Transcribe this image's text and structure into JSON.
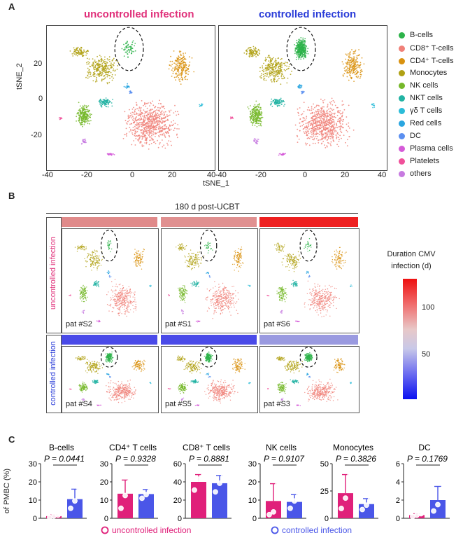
{
  "panels": {
    "a": "A",
    "b": "B",
    "c": "C"
  },
  "panelA": {
    "left_title": "uncontrolled infection",
    "right_title": "controlled infection",
    "x_axis_label": "tSNE_1",
    "y_axis_label": "tSNE_2",
    "x_ticks": [
      "-40",
      "-20",
      "0",
      "20",
      "40"
    ],
    "y_ticks": [
      "20",
      "0",
      "-20"
    ],
    "legend": [
      {
        "label": "B-cells",
        "color": "#2db34a"
      },
      {
        "label": "CD8⁺ T-cells",
        "color": "#f08078"
      },
      {
        "label": "CD4⁺ T-cells",
        "color": "#d9920f"
      },
      {
        "label": "Monocytes",
        "color": "#b0a114"
      },
      {
        "label": "NK cells",
        "color": "#76b82a"
      },
      {
        "label": "NKT cells",
        "color": "#22b3a3"
      },
      {
        "label": "γδ T cells",
        "color": "#2bbcd8"
      },
      {
        "label": "Red cells",
        "color": "#2aa6e0"
      },
      {
        "label": "DC",
        "color": "#5b8ff0"
      },
      {
        "label": "Plasma cells",
        "color": "#d55bd8"
      },
      {
        "label": "Platelets",
        "color": "#f0509a"
      },
      {
        "label": "others",
        "color": "#c77ae0"
      }
    ]
  },
  "panelB": {
    "timepoint": "180 d post-UCBT",
    "row_labels": [
      "uncontrolled infection",
      "controlled infection"
    ],
    "uncontrolled_row_label_color": "#e0307a",
    "controlled_row_label_color": "#2a3cd8",
    "patients_top": [
      {
        "label": "pat #S2",
        "bar_color": "#e08a8a"
      },
      {
        "label": "pat #S1",
        "bar_color": "#e09090"
      },
      {
        "label": "pat #S6",
        "bar_color": "#ee2020"
      }
    ],
    "patients_bottom": [
      {
        "label": "pat #S4",
        "bar_color": "#4a4ae8"
      },
      {
        "label": "pat #S5",
        "bar_color": "#4a4ae8"
      },
      {
        "label": "pat #S3",
        "bar_color": "#9a9ae0"
      }
    ],
    "colorbar_title": "Duration CMV infection (d)",
    "colorbar_ticks": [
      "100",
      "50"
    ]
  },
  "chart_data": [
    {
      "type": "bar",
      "title": "B-cells",
      "ylabel": "of PMBC (%)",
      "categories": [
        "uncontrolled infection",
        "controlled infection"
      ],
      "values": [
        1.2,
        10.5
      ],
      "errors": [
        0.6,
        5.5
      ],
      "points": [
        [
          0.5,
          1.3,
          1.8
        ],
        [
          5.5,
          9.5,
          16.5
        ]
      ],
      "ylim": [
        0,
        30
      ],
      "yticks": [
        "0",
        "10",
        "20",
        "30"
      ],
      "pvalue": "P = 0.0441"
    },
    {
      "type": "bar",
      "title": "CD4⁺ T cells",
      "ylabel": "",
      "categories": [
        "uncontrolled infection",
        "controlled infection"
      ],
      "values": [
        13.5,
        13.3
      ],
      "errors": [
        7.5,
        2.5
      ],
      "points": [
        [
          5.5,
          12.5,
          20.0
        ],
        [
          11.0,
          13.0,
          15.5
        ]
      ],
      "ylim": [
        0,
        30
      ],
      "yticks": [
        "0",
        "10",
        "20",
        "30"
      ],
      "pvalue": "P = 0.9328"
    },
    {
      "type": "bar",
      "title": "CD8⁺ T cells",
      "ylabel": "",
      "categories": [
        "uncontrolled infection",
        "controlled infection"
      ],
      "values": [
        40.0,
        38.5
      ],
      "errors": [
        8.0,
        8.5
      ],
      "points": [
        [
          31.0,
          43.0,
          46.0
        ],
        [
          29.0,
          38.5,
          47.0
        ]
      ],
      "ylim": [
        0,
        60
      ],
      "yticks": [
        "0",
        "20",
        "40",
        "60"
      ],
      "pvalue": "P = 0.8881"
    },
    {
      "type": "bar",
      "title": "NK cells",
      "ylabel": "",
      "categories": [
        "uncontrolled infection",
        "controlled infection"
      ],
      "values": [
        9.5,
        9.0
      ],
      "errors": [
        9.5,
        4.0
      ],
      "points": [
        [
          2.0,
          3.5,
          18.5
        ],
        [
          5.5,
          9.5,
          12.5
        ]
      ],
      "ylim": [
        0,
        30
      ],
      "yticks": [
        "0",
        "10",
        "20",
        "30"
      ],
      "pvalue": "P = 0.9107"
    },
    {
      "type": "bar",
      "title": "Monocytes",
      "ylabel": "",
      "categories": [
        "uncontrolled infection",
        "controlled infection"
      ],
      "values": [
        23.0,
        13.0
      ],
      "errors": [
        17.0,
        5.0
      ],
      "points": [
        [
          9.0,
          18.5,
          39.0
        ],
        [
          8.0,
          12.0,
          18.0
        ]
      ],
      "ylim": [
        0,
        50
      ],
      "yticks": [
        "0",
        "25",
        "50"
      ],
      "pvalue": "P = 0.3826"
    },
    {
      "type": "bar",
      "title": "DC",
      "ylabel": "",
      "categories": [
        "uncontrolled infection",
        "controlled infection"
      ],
      "values": [
        0.35,
        2.0
      ],
      "errors": [
        0.15,
        1.5
      ],
      "points": [
        [
          0.2,
          0.35,
          0.5
        ],
        [
          0.8,
          1.5,
          3.2
        ]
      ],
      "ylim": [
        0,
        6
      ],
      "yticks": [
        "0",
        "2",
        "4",
        "6"
      ],
      "pvalue": "P = 0.1769"
    }
  ],
  "panelC": {
    "legend": [
      {
        "label": "uncontrolled infection",
        "color": "#e0207a"
      },
      {
        "label": "controlled infection",
        "color": "#4a56e8"
      }
    ]
  }
}
